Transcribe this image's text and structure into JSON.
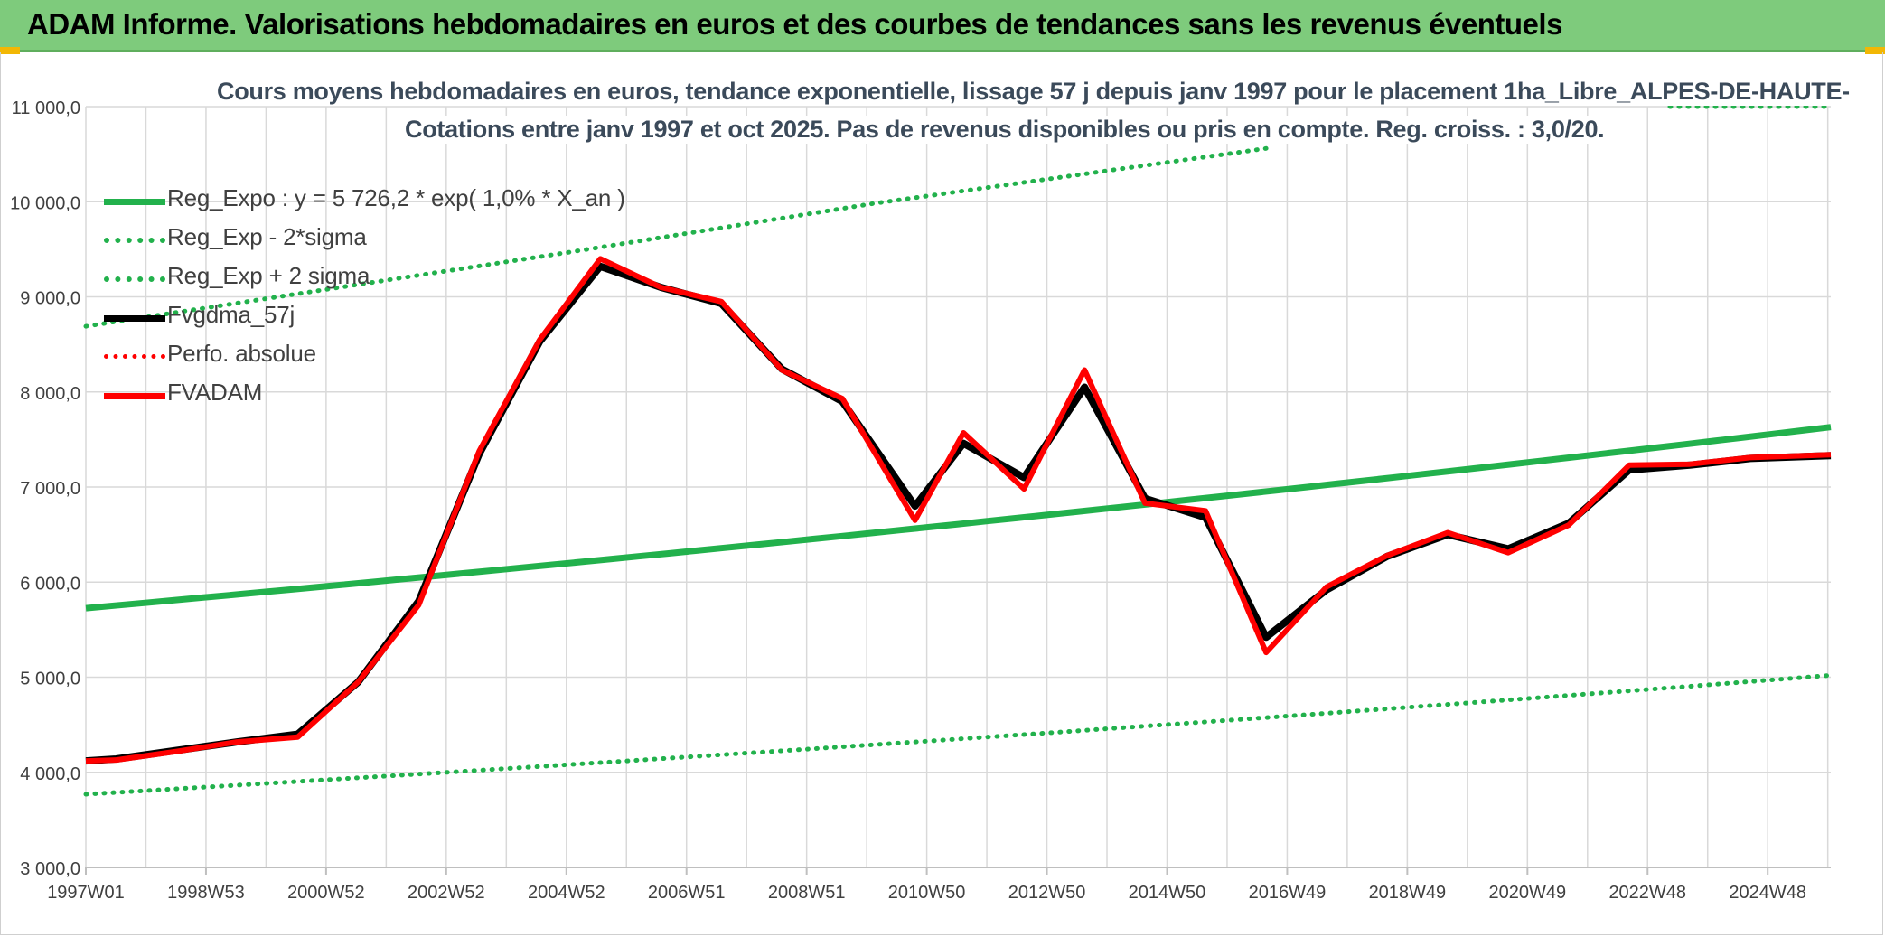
{
  "header": {
    "title": "ADAM Informe. Valorisations hebdomadaires en euros et des courbes de tendances sans les revenus éventuels"
  },
  "chart_data": {
    "type": "line",
    "title": [
      "Cours moyens hebdomadaires en euros, tendance exponentielle, lissage 57 j depuis janv 1997 pour le placement 1ha_Libre_ALPES-DE-HAUTE-",
      "Cotations entre janv 1997 et oct 2025. Pas de revenus disponibles ou pris en compte. Reg. croiss. : 3,0/20."
    ],
    "xlabel": "",
    "ylabel": "",
    "x_tick_labels": [
      "1997W01",
      "1998W53",
      "2000W52",
      "2002W52",
      "2004W52",
      "2006W51",
      "2008W51",
      "2010W50",
      "2012W50",
      "2014W50",
      "2016W49",
      "2018W49",
      "2020W49",
      "2022W48",
      "2024W48"
    ],
    "x_range_years": [
      1997.0,
      2025.83
    ],
    "ylim": [
      3000,
      11000
    ],
    "y_ticks": [
      3000,
      4000,
      5000,
      6000,
      7000,
      8000,
      9000,
      10000,
      11000
    ],
    "y_tick_labels": [
      "3 000,0",
      "4 000,0",
      "5 000,0",
      "6 000,0",
      "7 000,0",
      "8 000,0",
      "9 000,0",
      "10 000,0",
      "11 000,0"
    ],
    "grid": true,
    "legend_position": "top-left",
    "series": [
      {
        "name": "Reg_Expo : y = 5 726,2 * exp( 1,0% *  X_an )",
        "color": "#22b14c",
        "style": "solid",
        "x": [
          1997.0,
          2025.83
        ],
        "y": [
          5726,
          7630
        ]
      },
      {
        "name": "Reg_Exp - 2*sigma",
        "color": "#22b14c",
        "style": "dotted",
        "x": [
          1997.0,
          2025.83
        ],
        "y": [
          3770,
          5020
        ]
      },
      {
        "name": "Reg_Exp + 2 sigma",
        "color": "#22b14c",
        "style": "dotted",
        "x": [
          1997.0,
          2005.0,
          2010.0,
          2016.5
        ],
        "y": [
          8690,
          9470,
          9980,
          10560
        ]
      },
      {
        "name": "Fvgdma_57j",
        "color": "#000000",
        "style": "solid",
        "x": [
          1997.0,
          1997.5,
          1998.5,
          1999.5,
          2000.5,
          2001.5,
          2002.5,
          2003.5,
          2004.5,
          2005.5,
          2006.5,
          2007.5,
          2008.5,
          2009.5,
          2010.7,
          2011.5,
          2012.5,
          2013.5,
          2014.5,
          2015.5,
          2016.5,
          2017.5,
          2018.5,
          2019.5,
          2020.5,
          2021.5,
          2022.5,
          2023.5,
          2024.5,
          2025.83
        ],
        "y": [
          4120,
          4140,
          4230,
          4320,
          4400,
          4950,
          5800,
          7350,
          8530,
          9320,
          9100,
          8930,
          8240,
          7900,
          6800,
          7460,
          7100,
          8050,
          6880,
          6680,
          5420,
          5920,
          6270,
          6500,
          6350,
          6620,
          7180,
          7230,
          7300,
          7330
        ]
      },
      {
        "name": "Perfo. absolue",
        "color": "#ff0000",
        "style": "dotted",
        "x": [],
        "y": []
      },
      {
        "name": "FVADAM",
        "color": "#ff0000",
        "style": "solid",
        "x": [
          1997.0,
          1997.5,
          1998.5,
          1999.5,
          2000.5,
          2001.5,
          2002.5,
          2003.5,
          2004.5,
          2005.5,
          2006.5,
          2007.5,
          2008.5,
          2009.5,
          2010.7,
          2011.5,
          2012.5,
          2013.5,
          2014.5,
          2015.5,
          2016.5,
          2017.5,
          2018.5,
          2019.5,
          2020.5,
          2021.5,
          2022.5,
          2023.5,
          2024.5,
          2025.83
        ],
        "y": [
          4120,
          4130,
          4220,
          4320,
          4370,
          4950,
          5760,
          7380,
          8550,
          9400,
          9100,
          8950,
          8230,
          7930,
          6650,
          7570,
          6980,
          8230,
          6830,
          6750,
          5260,
          5950,
          6280,
          6520,
          6310,
          6600,
          7230,
          7240,
          7310,
          7340
        ]
      }
    ]
  }
}
